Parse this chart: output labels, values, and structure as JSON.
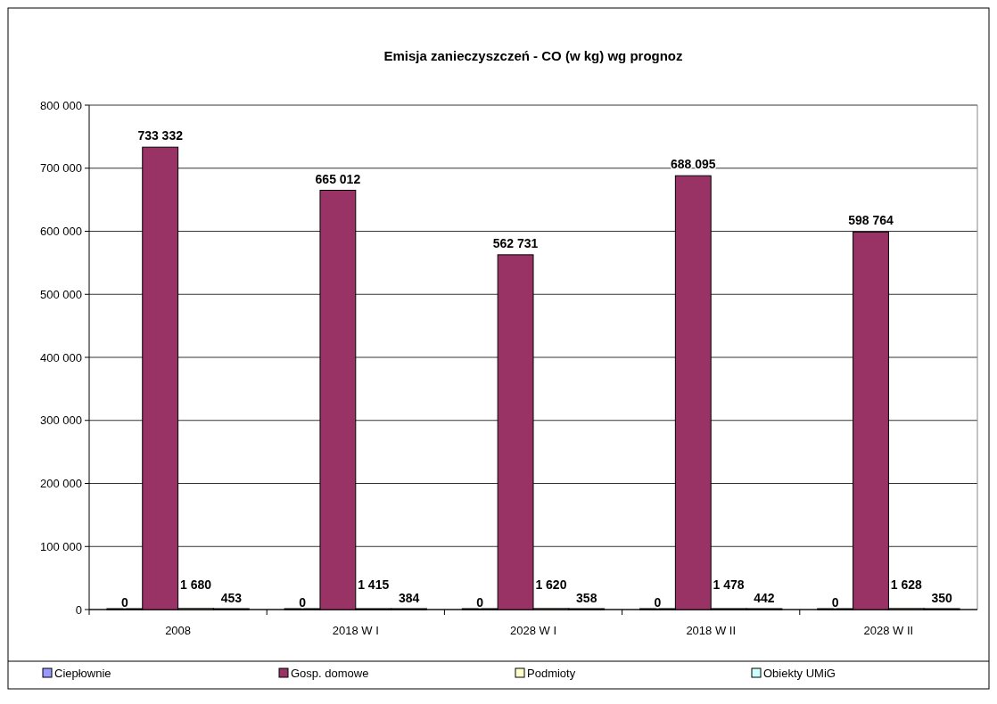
{
  "chart_data": {
    "type": "bar",
    "title": "Emisja zanieczyszczeń - CO  (w kg) wg prognoz",
    "categories": [
      "2008",
      "2018 W I",
      "2028 W I",
      "2018 W II",
      "2028 W II"
    ],
    "series": [
      {
        "name": "Ciepłownie",
        "color": "#9999ff",
        "values": [
          0,
          0,
          0,
          0,
          0
        ],
        "value_labels": [
          "0",
          "0",
          "0",
          "0",
          "0"
        ]
      },
      {
        "name": "Gosp. domowe",
        "color": "#993366",
        "values": [
          733332,
          665012,
          562731,
          688095,
          598764
        ],
        "value_labels": [
          "733 332",
          "665 012",
          "562 731",
          "688 095",
          "598 764"
        ]
      },
      {
        "name": "Podmioty",
        "color": "#ffffcc",
        "values": [
          1680,
          1415,
          1620,
          1478,
          1628
        ],
        "value_labels": [
          "1 680",
          "1 415",
          "1 620",
          "1 478",
          "1 628"
        ]
      },
      {
        "name": "Obiekty UMiG",
        "color": "#ccffff",
        "values": [
          453,
          384,
          358,
          442,
          350
        ],
        "value_labels": [
          "453",
          "384",
          "358",
          "442",
          "350"
        ]
      }
    ],
    "ylim": [
      0,
      800000
    ],
    "yticks": [
      {
        "value": 0,
        "label": "0"
      },
      {
        "value": 100000,
        "label": "100 000"
      },
      {
        "value": 200000,
        "label": "200 000"
      },
      {
        "value": 300000,
        "label": "300 000"
      },
      {
        "value": 400000,
        "label": "400 000"
      },
      {
        "value": 500000,
        "label": "500 000"
      },
      {
        "value": 600000,
        "label": "600 000"
      },
      {
        "value": 700000,
        "label": "700 000"
      },
      {
        "value": 800000,
        "label": "800 000"
      }
    ],
    "grid": "y",
    "legend": "bottom"
  }
}
